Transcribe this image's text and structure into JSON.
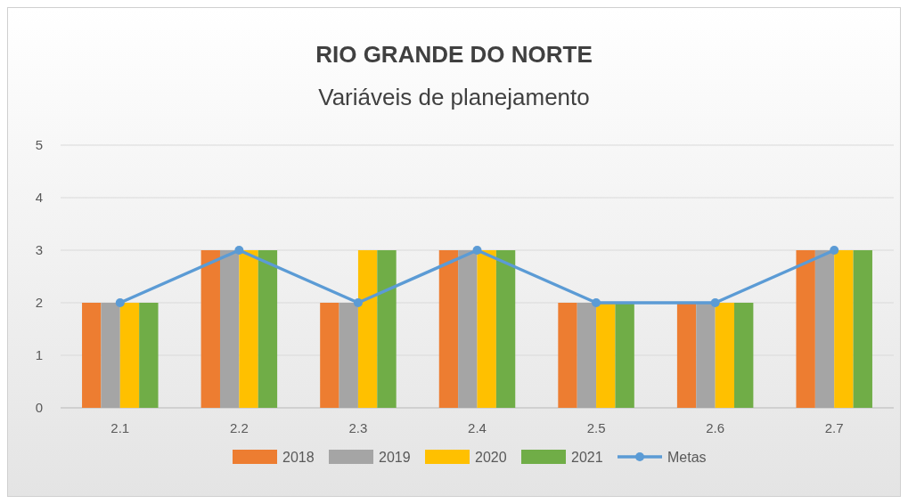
{
  "chart_data": {
    "type": "bar",
    "title": "RIO GRANDE DO NORTE",
    "subtitle": "Variáveis de planejamento",
    "categories": [
      "2.1",
      "2.2",
      "2.3",
      "2.4",
      "2.5",
      "2.6",
      "2.7"
    ],
    "series": [
      {
        "name": "2018",
        "color": "#ed7d31",
        "values": [
          2,
          3,
          2,
          3,
          2,
          2,
          3
        ]
      },
      {
        "name": "2019",
        "color": "#a5a5a5",
        "values": [
          2,
          3,
          2,
          3,
          2,
          2,
          3
        ]
      },
      {
        "name": "2020",
        "color": "#ffc000",
        "values": [
          2,
          3,
          3,
          3,
          2,
          2,
          3
        ]
      },
      {
        "name": "2021",
        "color": "#70ad47",
        "values": [
          2,
          3,
          3,
          3,
          2,
          2,
          3
        ]
      },
      {
        "name": "Metas",
        "type": "line",
        "color": "#5b9bd5",
        "marker": "circle",
        "values": [
          2,
          3,
          2,
          3,
          2,
          2,
          3
        ]
      }
    ],
    "ylim": [
      0,
      5
    ],
    "yticks": [
      0,
      1,
      2,
      3,
      4,
      5
    ],
    "grid": "y",
    "legend": "bottom"
  }
}
